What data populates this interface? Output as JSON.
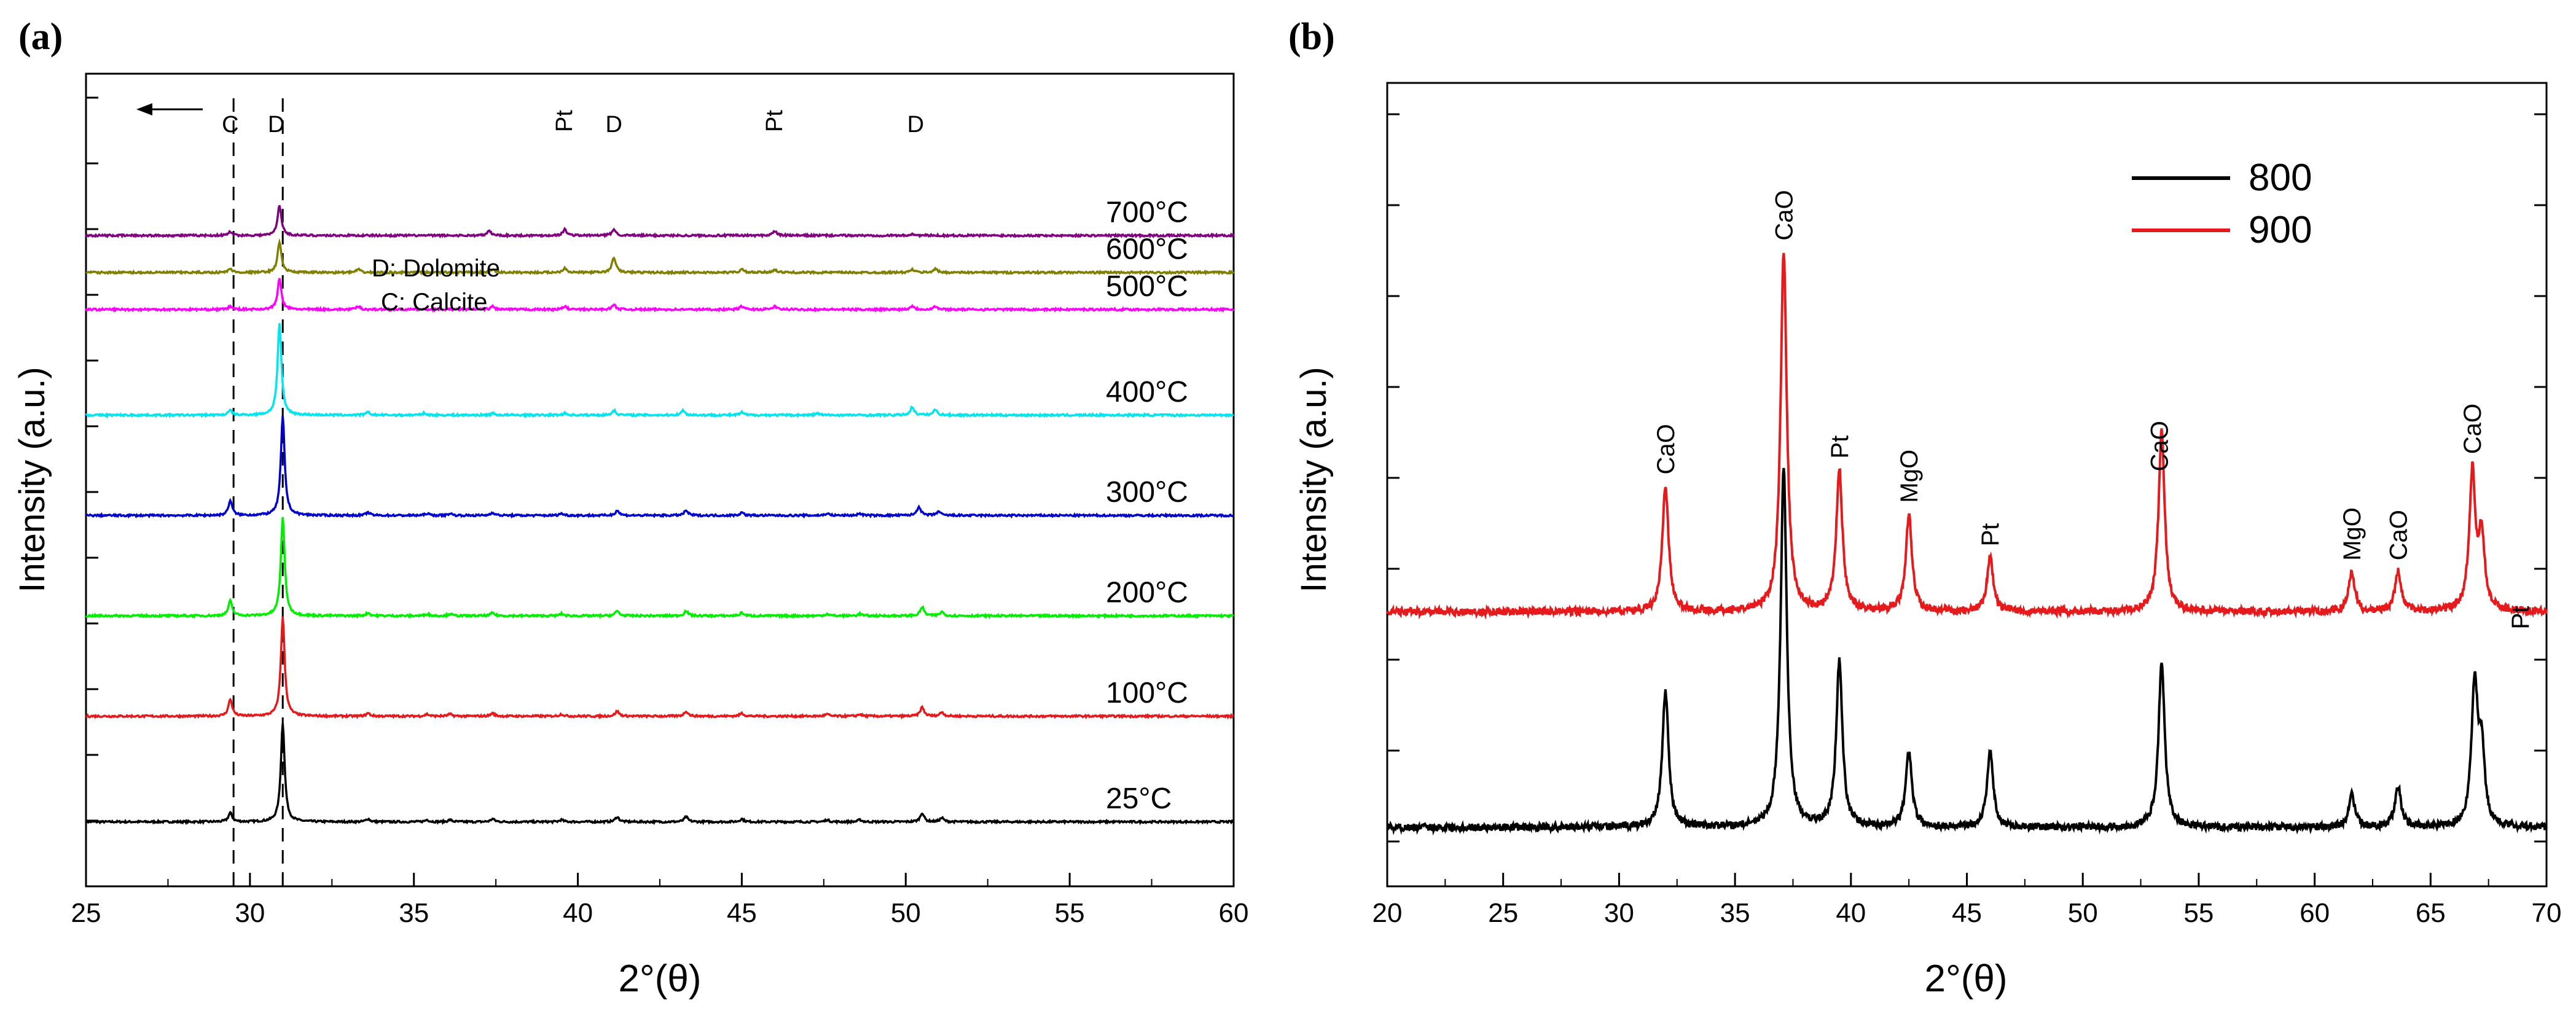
{
  "chart_data": [
    {
      "panel": "(a)",
      "type": "line",
      "ylabel": "Intensity (a.u.)",
      "xlabel": "2°(θ)",
      "xlim": [
        25,
        60
      ],
      "x_ticks": [
        25,
        30,
        35,
        40,
        45,
        50,
        55,
        60
      ],
      "y_ticks_labeled": false,
      "grid": false,
      "legend_text": [
        "D: Dolomite",
        "C: Calcite"
      ],
      "reference_lines_x": [
        29.5,
        31.0
      ],
      "arrow": "left",
      "peak_labels": [
        {
          "text": "C",
          "x": 29.4
        },
        {
          "text": "D",
          "x": 30.8
        },
        {
          "text": "Pt",
          "x": 39.6
        },
        {
          "text": "D",
          "x": 41.1
        },
        {
          "text": "Pt",
          "x": 46.0
        },
        {
          "text": "D",
          "x": 50.3
        }
      ],
      "series": [
        {
          "name": "25°C",
          "color": "#000000",
          "baseline": 0.0,
          "height": 0.13,
          "peaks": [
            [
              29.4,
              0.09
            ],
            [
              31.0,
              1.0
            ],
            [
              33.6,
              0.03
            ],
            [
              35.4,
              0.02
            ],
            [
              36.1,
              0.02
            ],
            [
              37.4,
              0.03
            ],
            [
              39.5,
              0.02
            ],
            [
              41.2,
              0.05
            ],
            [
              43.3,
              0.05
            ],
            [
              45.0,
              0.03
            ],
            [
              47.6,
              0.02
            ],
            [
              48.6,
              0.02
            ],
            [
              50.5,
              0.09
            ],
            [
              51.1,
              0.04
            ]
          ]
        },
        {
          "name": "100°C",
          "color": "#e41a1c",
          "baseline": 1.0,
          "height": 0.13,
          "peaks": [
            [
              29.4,
              0.17
            ],
            [
              31.0,
              1.0
            ],
            [
              33.6,
              0.03
            ],
            [
              35.4,
              0.02
            ],
            [
              36.1,
              0.02
            ],
            [
              37.4,
              0.03
            ],
            [
              39.5,
              0.02
            ],
            [
              41.2,
              0.05
            ],
            [
              43.3,
              0.05
            ],
            [
              45.0,
              0.03
            ],
            [
              47.6,
              0.02
            ],
            [
              48.6,
              0.02
            ],
            [
              50.5,
              0.09
            ],
            [
              51.1,
              0.04
            ]
          ]
        },
        {
          "name": "200°C",
          "color": "#00ee00",
          "baseline": 1.95,
          "height": 0.13,
          "peaks": [
            [
              29.4,
              0.15
            ],
            [
              31.0,
              1.0
            ],
            [
              33.6,
              0.03
            ],
            [
              35.4,
              0.02
            ],
            [
              36.1,
              0.02
            ],
            [
              37.4,
              0.03
            ],
            [
              39.5,
              0.02
            ],
            [
              41.2,
              0.05
            ],
            [
              43.3,
              0.05
            ],
            [
              45.0,
              0.03
            ],
            [
              47.6,
              0.02
            ],
            [
              48.6,
              0.02
            ],
            [
              50.5,
              0.09
            ],
            [
              51.1,
              0.04
            ]
          ]
        },
        {
          "name": "300°C",
          "color": "#0000cc",
          "baseline": 2.9,
          "height": 0.13,
          "peaks": [
            [
              29.4,
              0.15
            ],
            [
              31.0,
              1.0
            ],
            [
              33.6,
              0.03
            ],
            [
              35.4,
              0.02
            ],
            [
              36.1,
              0.02
            ],
            [
              37.4,
              0.03
            ],
            [
              39.5,
              0.02
            ],
            [
              41.2,
              0.05
            ],
            [
              43.3,
              0.05
            ],
            [
              45.0,
              0.03
            ],
            [
              47.6,
              0.02
            ],
            [
              48.6,
              0.02
            ],
            [
              50.4,
              0.09
            ],
            [
              51.0,
              0.04
            ]
          ]
        },
        {
          "name": "400°C",
          "color": "#00e5ee",
          "baseline": 3.85,
          "height": 0.12,
          "peaks": [
            [
              29.4,
              0.05
            ],
            [
              30.9,
              1.0
            ],
            [
              33.6,
              0.03
            ],
            [
              35.3,
              0.02
            ],
            [
              37.4,
              0.02
            ],
            [
              39.6,
              0.02
            ],
            [
              41.1,
              0.05
            ],
            [
              43.2,
              0.05
            ],
            [
              45.0,
              0.03
            ],
            [
              47.3,
              0.02
            ],
            [
              50.2,
              0.09
            ],
            [
              50.9,
              0.06
            ]
          ]
        },
        {
          "name": "500°C",
          "color": "#ff00ff",
          "baseline": 4.85,
          "height": 0.04,
          "peaks": [
            [
              29.4,
              0.1
            ],
            [
              30.9,
              1.0
            ],
            [
              33.3,
              0.1
            ],
            [
              37.4,
              0.1
            ],
            [
              39.6,
              0.1
            ],
            [
              41.1,
              0.15
            ],
            [
              45.0,
              0.1
            ],
            [
              46.0,
              0.1
            ],
            [
              50.2,
              0.12
            ],
            [
              50.9,
              0.1
            ]
          ]
        },
        {
          "name": "600°C",
          "color": "#808000",
          "baseline": 5.2,
          "height": 0.04,
          "peaks": [
            [
              29.4,
              0.12
            ],
            [
              30.9,
              1.0
            ],
            [
              33.3,
              0.1
            ],
            [
              37.4,
              0.1
            ],
            [
              39.6,
              0.15
            ],
            [
              41.1,
              0.5
            ],
            [
              45.0,
              0.1
            ],
            [
              46.0,
              0.1
            ],
            [
              50.2,
              0.1
            ],
            [
              50.9,
              0.12
            ]
          ]
        },
        {
          "name": "700°C",
          "color": "#800080",
          "baseline": 5.55,
          "height": 0.04,
          "peaks": [
            [
              29.4,
              0.12
            ],
            [
              30.9,
              1.0
            ],
            [
              37.3,
              0.15
            ],
            [
              39.6,
              0.2
            ],
            [
              41.1,
              0.2
            ],
            [
              46.0,
              0.15
            ],
            [
              50.2,
              0.05
            ]
          ]
        }
      ]
    },
    {
      "panel": "(b)",
      "type": "line",
      "ylabel": "Intensity (a.u.)",
      "xlabel": "2°(θ)",
      "xlim": [
        20,
        70
      ],
      "x_ticks": [
        20,
        25,
        30,
        35,
        40,
        45,
        50,
        55,
        60,
        65,
        70
      ],
      "y_ticks_labeled": false,
      "grid": false,
      "legend": "top-right",
      "peak_labels": [
        {
          "text": "CaO",
          "x": 32.0
        },
        {
          "text": "CaO",
          "x": 37.1
        },
        {
          "text": "Pt",
          "x": 39.5
        },
        {
          "text": "MgO",
          "x": 42.5
        },
        {
          "text": "Pt",
          "x": 46.0
        },
        {
          "text": "CaO",
          "x": 53.3
        },
        {
          "text": "MgO",
          "x": 61.6
        },
        {
          "text": "CaO",
          "x": 63.6
        },
        {
          "text": "CaO",
          "x": 66.8
        },
        {
          "text": "Pt",
          "x": 67.8
        }
      ],
      "series": [
        {
          "name": "800",
          "color": "#000000",
          "baseline": 0.0,
          "peaks": [
            [
              32.0,
              0.38
            ],
            [
              37.1,
              1.0
            ],
            [
              39.5,
              0.46
            ],
            [
              42.5,
              0.21
            ],
            [
              46.0,
              0.21
            ],
            [
              53.4,
              0.46
            ],
            [
              61.6,
              0.09
            ],
            [
              63.6,
              0.11
            ],
            [
              66.9,
              0.39
            ],
            [
              67.2,
              0.2
            ]
          ]
        },
        {
          "name": "900",
          "color": "#e41a1c",
          "baseline": 0.9,
          "peaks": [
            [
              32.0,
              0.35
            ],
            [
              37.1,
              1.0
            ],
            [
              39.5,
              0.39
            ],
            [
              42.5,
              0.27
            ],
            [
              46.0,
              0.15
            ],
            [
              53.4,
              0.5
            ],
            [
              61.6,
              0.11
            ],
            [
              63.6,
              0.11
            ],
            [
              66.8,
              0.38
            ],
            [
              67.2,
              0.2
            ]
          ]
        }
      ]
    }
  ]
}
